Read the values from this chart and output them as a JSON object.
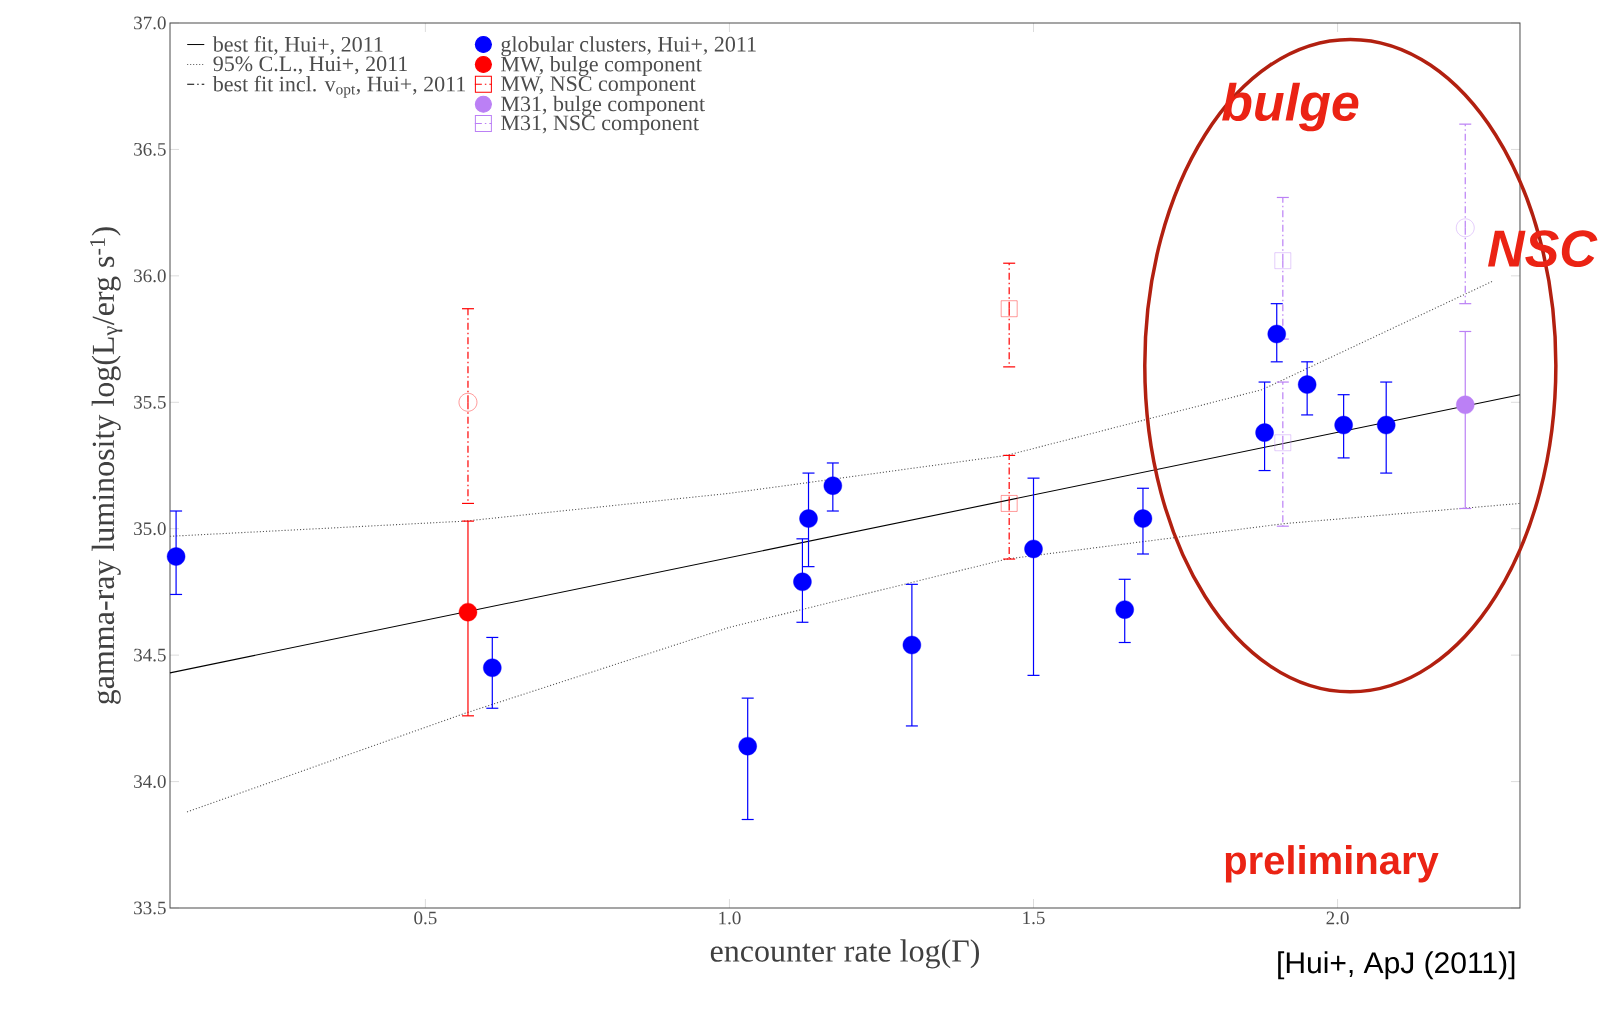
{
  "chart_data": {
    "type": "scatter",
    "xlabel": "encounter rate    log(Γ)",
    "ylabel": "gamma-ray luminosity    log(L$_{γ}$/erg s$^{-1}$)",
    "xlim": [
      0.08,
      2.3
    ],
    "ylim": [
      33.5,
      37.0
    ],
    "xticks": [
      {
        "value": 0.5,
        "label": "0.5"
      },
      {
        "value": 1,
        "label": "1.0"
      },
      {
        "value": 1.5,
        "label": "1.5"
      },
      {
        "value": 2,
        "label": "2.0"
      }
    ],
    "yticks": [
      {
        "value": 33.5,
        "label": "33.5"
      },
      {
        "value": 34,
        "label": "34.0"
      },
      {
        "value": 34.5,
        "label": "34.5"
      },
      {
        "value": 35,
        "label": "35.0"
      },
      {
        "value": 35.5,
        "label": "35.5"
      },
      {
        "value": 36,
        "label": "36.0"
      },
      {
        "value": 36.5,
        "label": "36.5"
      },
      {
        "value": 37,
        "label": "37.0"
      }
    ],
    "legend": "top left",
    "series": [
      {
        "name": "best fit, Hui+, 2011",
        "type": "line",
        "color": "#000000",
        "line_style": "solid",
        "x": [
          0.08,
          2.3
        ],
        "values": [
          34.43,
          35.53
        ]
      },
      {
        "name": "95% C.L., Hui+, 2011",
        "type": "line",
        "color": "#555555",
        "line_style": "dotted",
        "x": [
          0.08,
          0.565,
          1.0,
          1.456,
          1.876,
          2.256
        ],
        "values": [
          34.97,
          35.03,
          35.14,
          35.29,
          35.55,
          35.98
        ]
      },
      {
        "type": "line",
        "color": "#555555",
        "line_style": "dotted",
        "x": [
          0.108,
          0.565,
          1.0,
          1.456,
          1.912,
          2.3
        ],
        "values": [
          33.88,
          34.27,
          34.61,
          34.88,
          35.02,
          35.1
        ]
      },
      {
        "name": "best fit incl. v$_{opt}$, Hui+, 2011",
        "type": "line",
        "color": "#000000",
        "line_style": "dashed"
      },
      {
        "name": "globular clusters, Hui+, 2011",
        "color": "#0000ff",
        "marker": "circle",
        "line_style": "solid",
        "x": [
          0.09,
          0.61,
          1.03,
          1.13,
          1.12,
          1.17,
          1.3,
          1.5,
          1.65,
          1.68,
          1.88,
          1.9,
          1.95,
          2.01,
          2.08
        ],
        "values": [
          34.89,
          34.45,
          34.14,
          35.04,
          34.79,
          35.17,
          34.54,
          34.92,
          34.68,
          35.04,
          35.38,
          35.77,
          35.57,
          35.41,
          35.41
        ],
        "errors": [
          [
            34.74,
            35.07
          ],
          [
            34.29,
            34.57
          ],
          [
            33.85,
            34.33
          ],
          [
            34.85,
            35.22
          ],
          [
            34.63,
            34.96
          ],
          [
            35.07,
            35.26
          ],
          [
            34.22,
            34.78
          ],
          [
            34.42,
            35.2
          ],
          [
            34.55,
            34.8
          ],
          [
            34.9,
            35.16
          ],
          [
            35.23,
            35.58
          ],
          [
            35.66,
            35.89
          ],
          [
            35.45,
            35.66
          ],
          [
            35.28,
            35.53
          ],
          [
            35.22,
            35.58
          ]
        ]
      },
      {
        "name": "MW, bulge component",
        "color": "#ff0000",
        "marker": "circle",
        "line_style": "solid",
        "x": [
          0.57
        ],
        "values": [
          34.67
        ],
        "errors": [
          [
            34.26,
            35.03
          ]
        ]
      },
      {
        "color": "#ff0000",
        "marker": "circle",
        "line_style": "dashed",
        "x": [
          0.57
        ],
        "values": [
          35.5
        ],
        "errors": [
          [
            35.1,
            35.87
          ]
        ]
      },
      {
        "name": "MW, NSC component",
        "color": "#ff0000",
        "marker": "square",
        "line_style": "dashed",
        "x": [
          1.46,
          1.46
        ],
        "values": [
          35.1,
          35.87
        ],
        "errors": [
          [
            34.88,
            35.29
          ],
          [
            35.64,
            36.05
          ]
        ]
      },
      {
        "name": "M31, bulge component",
        "color": "#bb80f5",
        "marker": "circle",
        "line_style": "solid",
        "x": [
          2.21
        ],
        "values": [
          35.49
        ],
        "errors": [
          [
            35.08,
            35.78
          ]
        ]
      },
      {
        "color": "#bb80f5",
        "marker": "circle",
        "line_style": "dashed",
        "x": [
          2.21
        ],
        "values": [
          36.19
        ],
        "errors": [
          [
            35.89,
            36.6
          ]
        ]
      },
      {
        "name": "M31, NSC component",
        "color": "#bb80f5",
        "marker": "square",
        "line_style": "dashed",
        "x": [
          1.91,
          1.91
        ],
        "values": [
          35.34,
          36.06
        ],
        "errors": [
          [
            35.01,
            35.58
          ],
          [
            35.75,
            36.31
          ]
        ]
      }
    ],
    "annotations": [
      "bulge",
      "NSC",
      "preliminary",
      "[Hui+, ApJ (2011)]"
    ]
  }
}
